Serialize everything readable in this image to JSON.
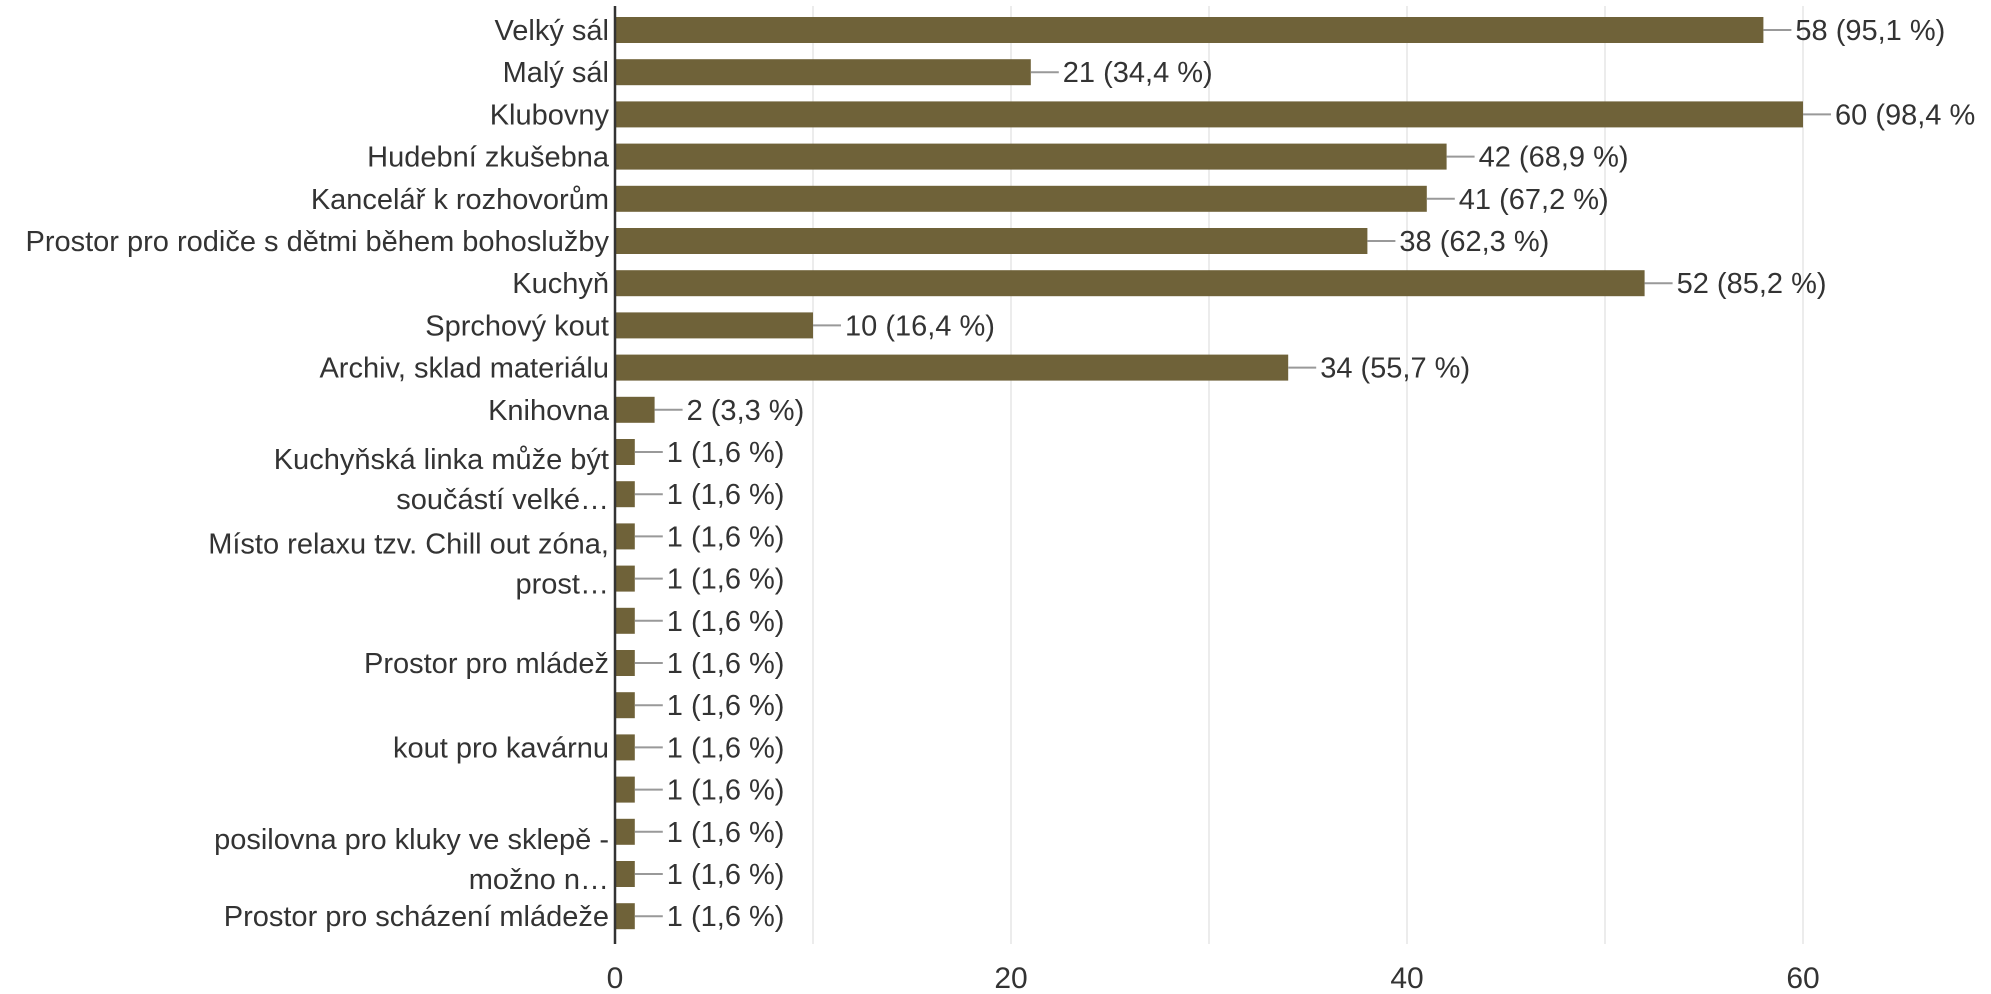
{
  "chart_data": {
    "type": "bar",
    "orientation": "horizontal",
    "xlim": [
      0,
      60
    ],
    "x_ticks": [
      "0",
      "20",
      "40",
      "60"
    ],
    "grid": true,
    "colors": {
      "bar": "#6f6239",
      "grid": "#e6e6e6",
      "axis": "#333333",
      "leader": "#999999",
      "text": "#333333"
    },
    "rows": [
      {
        "category": "Velký sál",
        "value": 58,
        "data_label": "58 (95,1 %)"
      },
      {
        "category": "Malý sál",
        "value": 21,
        "data_label": "21 (34,4 %)"
      },
      {
        "category": "Klubovny",
        "value": 60,
        "data_label": "60 (98,4 %"
      },
      {
        "category": "Hudební zkušebna",
        "value": 42,
        "data_label": "42 (68,9 %)"
      },
      {
        "category": "Kancelář k rozhovorům",
        "value": 41,
        "data_label": "41 (67,2 %)"
      },
      {
        "category": "Prostor pro rodiče s dětmi během bohoslužby",
        "value": 38,
        "data_label": "38 (62,3 %)"
      },
      {
        "category": "Kuchyň",
        "value": 52,
        "data_label": "52 (85,2 %)"
      },
      {
        "category": "Sprchový kout",
        "value": 10,
        "data_label": "10 (16,4 %)"
      },
      {
        "category": "Archiv, sklad materiálu",
        "value": 34,
        "data_label": "34 (55,7 %)"
      },
      {
        "category": "Knihovna",
        "value": 2,
        "data_label": "2 (3,3 %)"
      },
      {
        "category": "",
        "value": 1,
        "data_label": "1 (1,6 %)"
      },
      {
        "category": "",
        "value": 1,
        "data_label": "1 (1,6 %)"
      },
      {
        "category": "",
        "value": 1,
        "data_label": "1 (1,6 %)"
      },
      {
        "category": "",
        "value": 1,
        "data_label": "1 (1,6 %)"
      },
      {
        "category": "",
        "value": 1,
        "data_label": "1 (1,6 %)"
      },
      {
        "category": "Prostor pro mládež",
        "value": 1,
        "data_label": "1 (1,6 %)"
      },
      {
        "category": "",
        "value": 1,
        "data_label": "1 (1,6 %)"
      },
      {
        "category": "kout pro kavárnu",
        "value": 1,
        "data_label": "1 (1,6 %)"
      },
      {
        "category": "",
        "value": 1,
        "data_label": "1 (1,6 %)"
      },
      {
        "category": "",
        "value": 1,
        "data_label": "1 (1,6 %)"
      },
      {
        "category": "",
        "value": 1,
        "data_label": "1 (1,6 %)"
      },
      {
        "category": "Prostor pro scházení mládeže",
        "value": 1,
        "data_label": "1 (1,6 %)"
      }
    ],
    "wrapped_labels": [
      {
        "lines": [
          "Kuchyňská linka může být",
          "součástí velké…"
        ],
        "start_row": 10,
        "row_span": 2
      },
      {
        "lines": [
          "Místo relaxu tzv. Chill out zóna,",
          "prost…"
        ],
        "start_row": 12,
        "row_span": 2
      },
      {
        "lines": [
          "posilovna pro kluky ve sklepě -",
          "možno n…"
        ],
        "start_row": 19,
        "row_span": 2
      }
    ]
  }
}
